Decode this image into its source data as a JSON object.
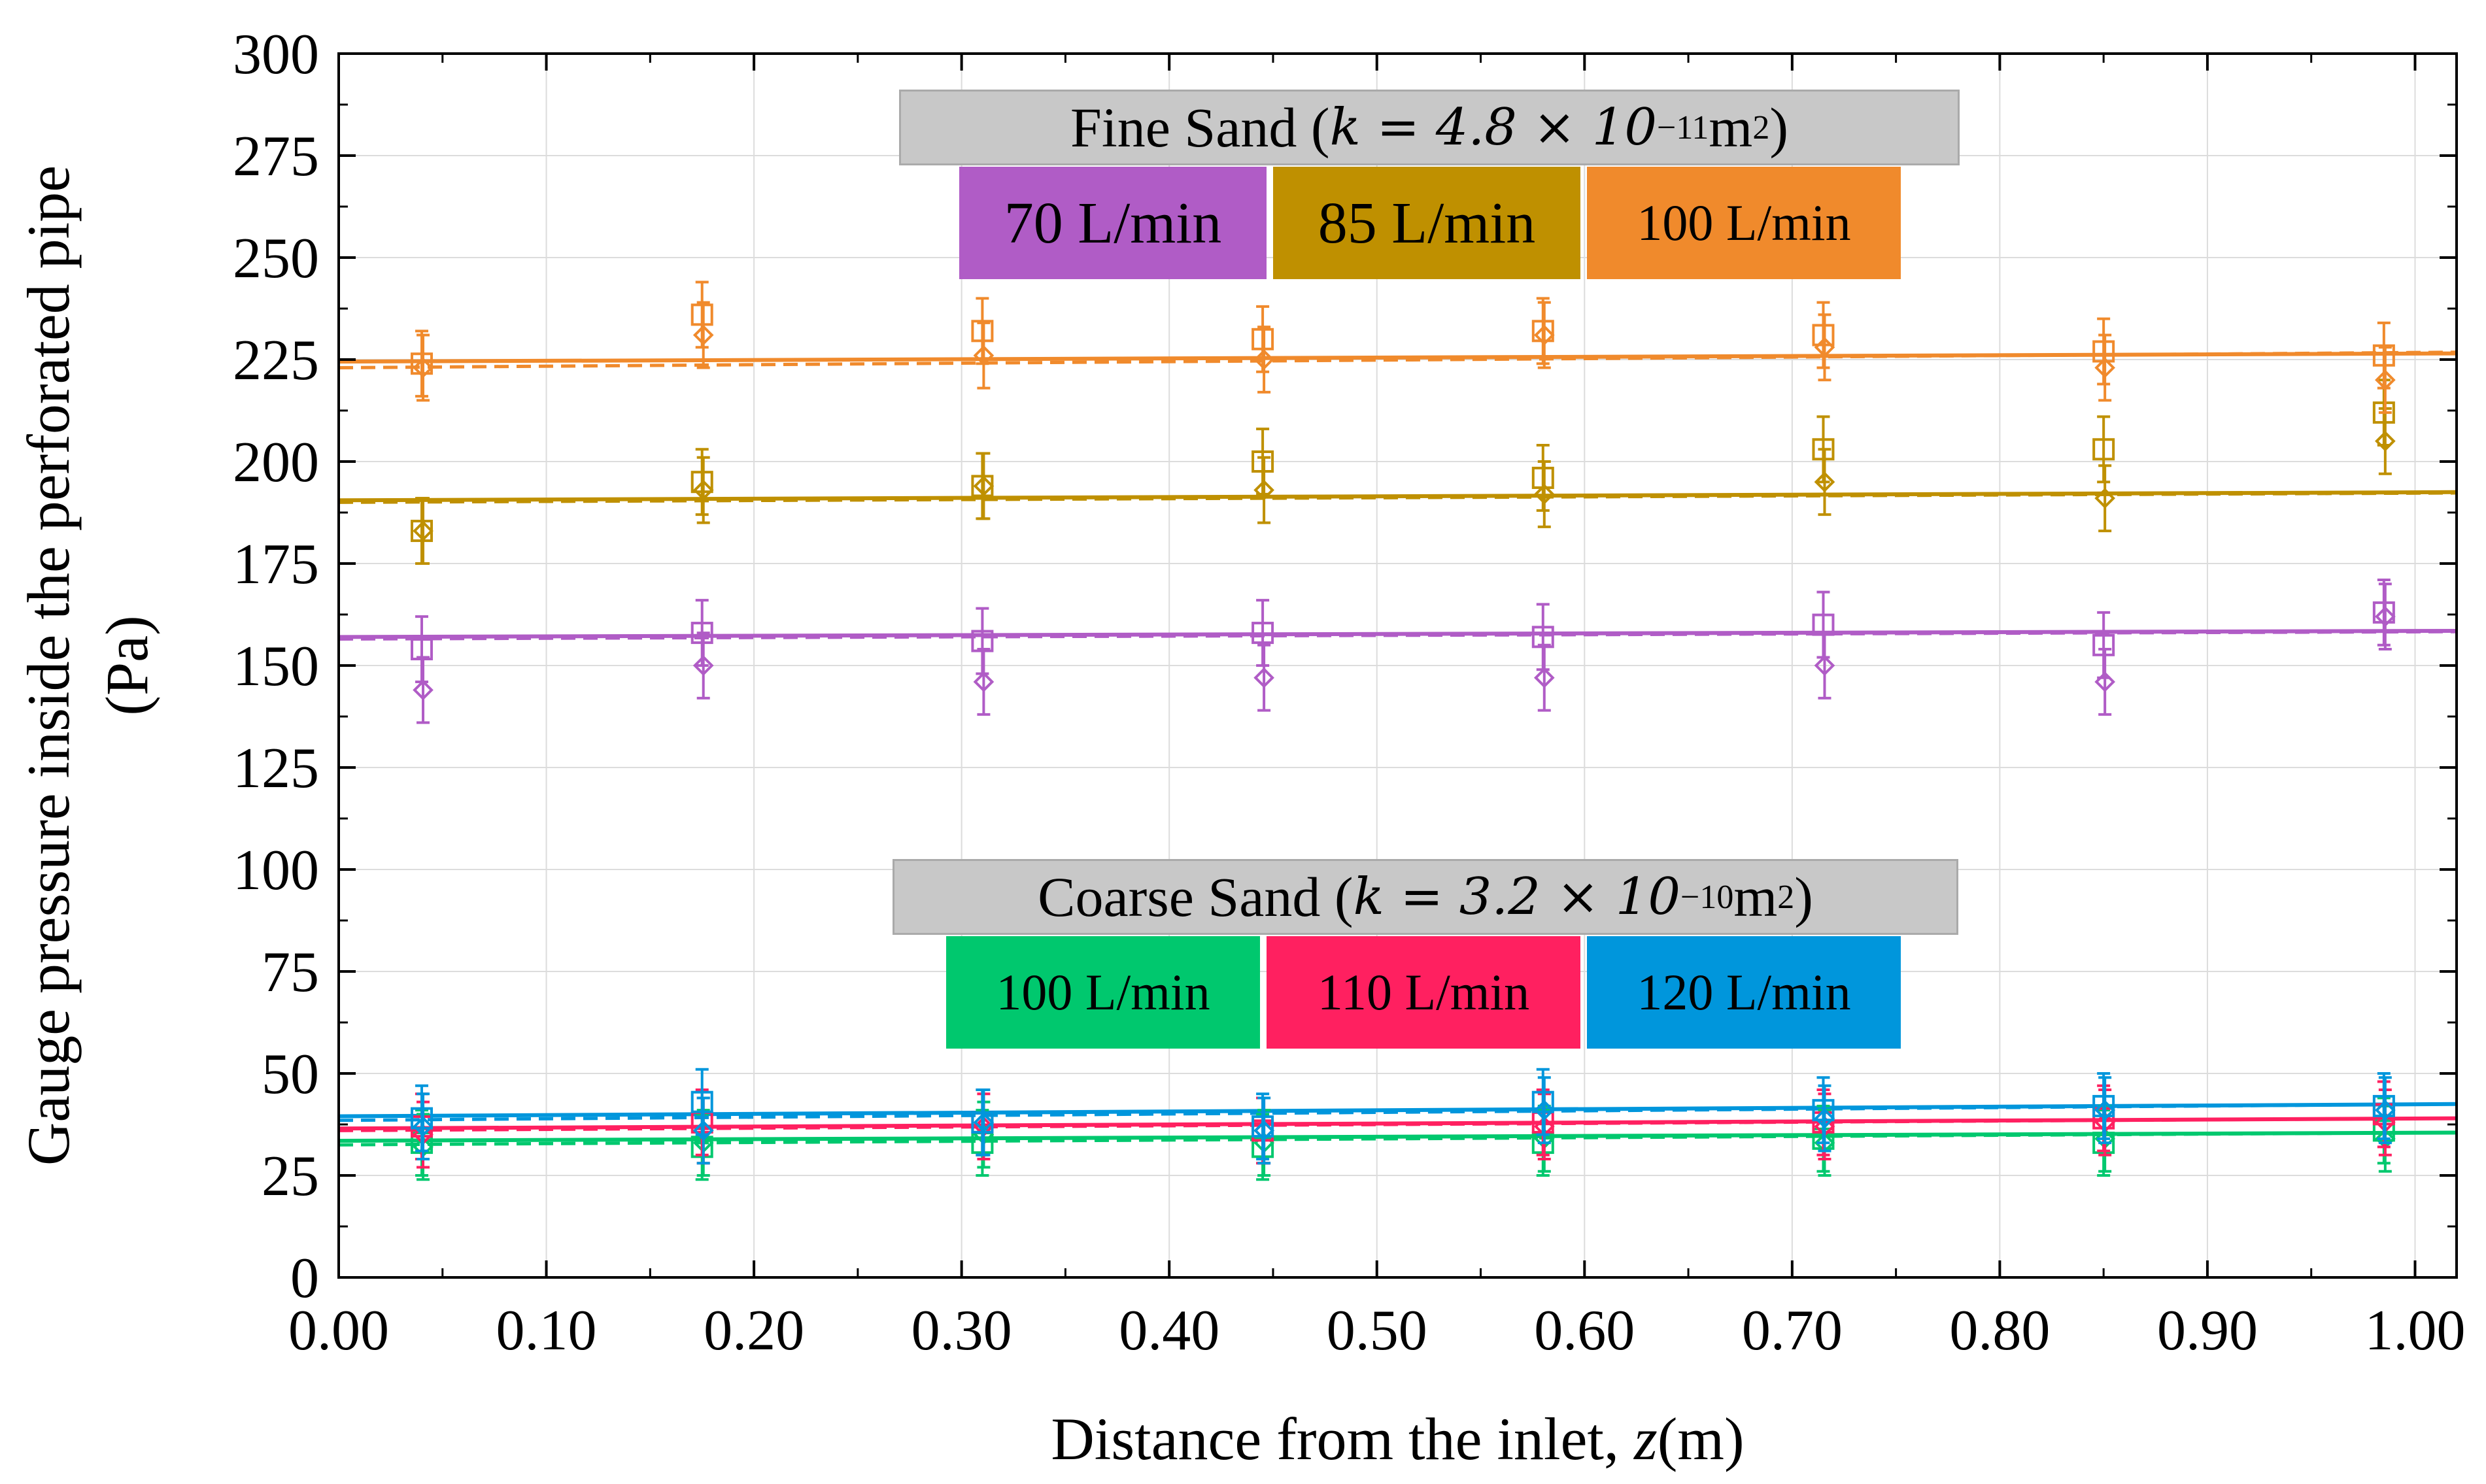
{
  "chart_data": {
    "type": "scatter",
    "xlabel_text": "Distance from the inlet, ",
    "xlabel_var": "z",
    "xlabel_unit": "(m)",
    "ylabel_line1": "Gauge pressure inside the perforated pipe",
    "ylabel_line2": "(Pa)",
    "xlim": [
      0,
      1.02
    ],
    "ylim": [
      0,
      300
    ],
    "xticks": [
      "0.00",
      "0.10",
      "0.20",
      "0.30",
      "0.40",
      "0.50",
      "0.60",
      "0.70",
      "0.80",
      "0.90",
      "1.00"
    ],
    "yticks": [
      "0",
      "25",
      "50",
      "75",
      "100",
      "125",
      "150",
      "175",
      "200",
      "225",
      "250",
      "275",
      "300"
    ],
    "grid": true,
    "x": [
      0.04,
      0.175,
      0.31,
      0.445,
      0.58,
      0.715,
      0.85,
      0.985
    ],
    "fine_title_prefix": "Fine Sand (",
    "fine_title_k": "k = 4.8 × 10",
    "fine_title_exp": "−11",
    "fine_title_unit": " m",
    "fine_title_unit_exp": "2",
    "fine_title_suffix": ")",
    "coarse_title_prefix": "Coarse Sand (",
    "coarse_title_k": "k = 3.2 × 10",
    "coarse_title_exp": "−10",
    "coarse_title_unit": " m",
    "coarse_title_unit_exp": "2",
    "coarse_title_suffix": ")",
    "series": [
      {
        "name": "70 L/min",
        "color": "#b05cc6",
        "group": "fine",
        "squares": [
          154,
          158,
          156,
          158,
          157,
          160,
          155,
          163
        ],
        "diamonds": [
          144,
          150,
          146,
          147,
          147,
          150,
          146,
          162
        ],
        "error": 8,
        "line": [
          157.0,
          158.5
        ],
        "dashed": [
          156.5,
          158.3
        ]
      },
      {
        "name": "85 L/min",
        "color": "#bf9000",
        "group": "fine",
        "squares": [
          183,
          195,
          194,
          200,
          196,
          203,
          203,
          212
        ],
        "diamonds": [
          183,
          193,
          194,
          193,
          192,
          195,
          191,
          205
        ],
        "error": 8,
        "line": [
          190.5,
          192.5
        ],
        "dashed": [
          190.0,
          192.3
        ]
      },
      {
        "name": "100 L/min",
        "color": "#f08a2c",
        "group": "fine",
        "squares": [
          224,
          236,
          232,
          230,
          232,
          231,
          227,
          226
        ],
        "diamonds": [
          223,
          231,
          226,
          225,
          231,
          228,
          223,
          220
        ],
        "error": 8,
        "line": [
          224.5,
          226.5
        ],
        "dashed": [
          223.0,
          226.8
        ]
      },
      {
        "name": "100 L/min",
        "color": "#00c86e",
        "group": "coarse",
        "squares": [
          33,
          32,
          33,
          32,
          33,
          34,
          33,
          36
        ],
        "diamonds": [
          32,
          33,
          35,
          33,
          34,
          33,
          34,
          34
        ],
        "error": 8,
        "line": [
          33.5,
          35.5
        ],
        "dashed": [
          32.5,
          35.5
        ]
      },
      {
        "name": "110 L/min",
        "color": "#ff2060",
        "group": "coarse",
        "squares": [
          37,
          38,
          38,
          36,
          38,
          38,
          39,
          40
        ],
        "diamonds": [
          35,
          36,
          37,
          36,
          37,
          37,
          38,
          38
        ],
        "error": 8,
        "line": [
          36.5,
          39.0
        ],
        "dashed": [
          36.0,
          39.0
        ]
      },
      {
        "name": "120 L/min",
        "color": "#0096dc",
        "group": "coarse",
        "squares": [
          39,
          43,
          38,
          37,
          43,
          41,
          42,
          42
        ],
        "diamonds": [
          37,
          36,
          38,
          36,
          41,
          39,
          41,
          41
        ],
        "error": 8,
        "line": [
          39.5,
          42.5
        ],
        "dashed": [
          38.5,
          42.5
        ]
      }
    ]
  }
}
